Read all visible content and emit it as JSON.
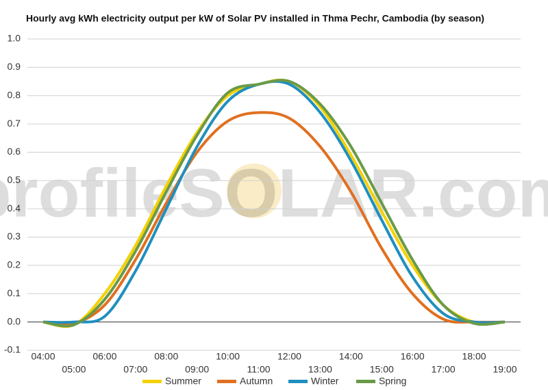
{
  "chart_data": {
    "type": "line",
    "title": "Hourly avg kWh electricity output per kW of Solar PV installed in Thma Pechr, Cambodia (by season)",
    "watermark": "profileSOLAR.com",
    "categories": [
      "04:00",
      "05:00",
      "06:00",
      "07:00",
      "08:00",
      "09:00",
      "10:00",
      "11:00",
      "12:00",
      "13:00",
      "14:00",
      "15:00",
      "16:00",
      "17:00",
      "18:00",
      "19:00"
    ],
    "series": [
      {
        "name": "Summer",
        "color": "#f5d000",
        "values": [
          0,
          -0.01,
          0.1,
          0.27,
          0.48,
          0.67,
          0.8,
          0.84,
          0.85,
          0.76,
          0.59,
          0.39,
          0.2,
          0.06,
          0.0,
          0
        ]
      },
      {
        "name": "Autumn",
        "color": "#e07020",
        "values": [
          0,
          -0.005,
          0.06,
          0.22,
          0.42,
          0.6,
          0.71,
          0.74,
          0.72,
          0.62,
          0.46,
          0.26,
          0.1,
          0.01,
          0,
          0
        ]
      },
      {
        "name": "Winter",
        "color": "#1f8fbf",
        "values": [
          0,
          0,
          0.02,
          0.18,
          0.4,
          0.62,
          0.78,
          0.84,
          0.84,
          0.74,
          0.57,
          0.36,
          0.16,
          0.03,
          0,
          0
        ]
      },
      {
        "name": "Spring",
        "color": "#6a9a48",
        "values": [
          0,
          -0.01,
          0.08,
          0.25,
          0.46,
          0.66,
          0.81,
          0.84,
          0.85,
          0.77,
          0.62,
          0.42,
          0.22,
          0.06,
          -0.005,
          0
        ]
      }
    ],
    "ylim": [
      -0.1,
      1.0
    ],
    "yticks": [
      -0.1,
      {
        "value": 0,
        "label": "0.0"
      },
      0.1,
      0.2,
      0.3,
      0.4,
      0.5,
      0.6,
      0.7,
      0.8,
      0.9,
      {
        "value": 1,
        "label": "1.0"
      }
    ],
    "grid": true,
    "legend": "bottom"
  }
}
